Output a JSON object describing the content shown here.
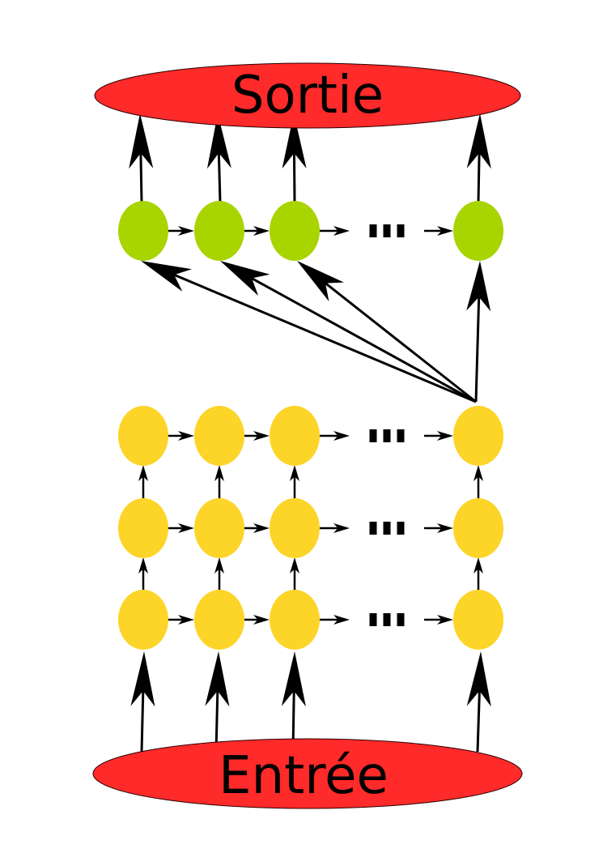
{
  "output_label": "Sortie",
  "input_label": "Entrée",
  "colors": {
    "io_fill": "#ff2a2a",
    "io_stroke": "#2b0000",
    "decoder_node": "#a8d400",
    "encoder_node": "#fdd428",
    "arrow": "#000000",
    "ellipsis": "#000000"
  },
  "icons": {
    "ellipsis": "three-dots",
    "arrowhead": "filled-arrowhead"
  },
  "structure": {
    "decoder_layers": 1,
    "encoder_layers": 3,
    "nodes_per_layer": 4,
    "ellipsis_between": "node-3-and-node-4",
    "attention_source": "top-encoder-last-node",
    "attention_targets": 4
  }
}
